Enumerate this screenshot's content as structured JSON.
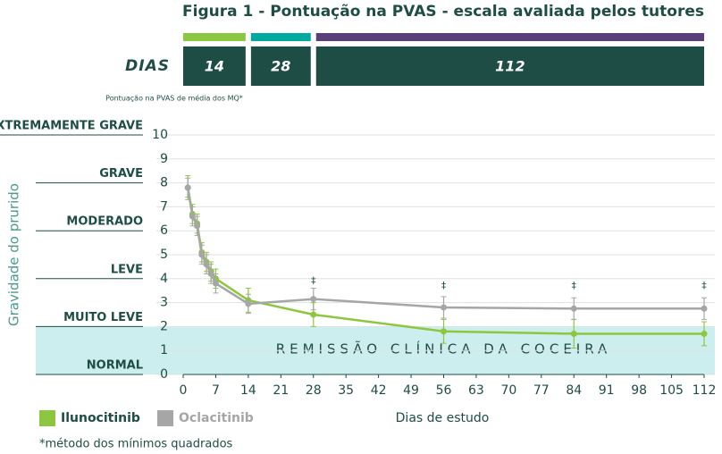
{
  "chart_data": {
    "type": "line",
    "title": "Figura 1 - Pontuação na PVAS - escala avaliada pelos tutores",
    "periods_label": "DIAS",
    "periods": [
      {
        "label": "14",
        "start": 0,
        "end": 14,
        "color": "#8dc63f"
      },
      {
        "label": "28",
        "start": 14,
        "end": 28,
        "color": "#00a99d"
      },
      {
        "label": "112",
        "start": 28,
        "end": 112,
        "color": "#5b3f7a"
      }
    ],
    "y_note": "Pontuação na PVAS de média dos MQ*",
    "ylabel": "Gravidade do prurido",
    "xlabel": "Dias de estudo",
    "severity_levels": [
      {
        "label": "EXTREMAMENTE GRAVE",
        "value": 10
      },
      {
        "label": "GRAVE",
        "value": 8
      },
      {
        "label": "MODERADO",
        "value": 6
      },
      {
        "label": "LEVE",
        "value": 4
      },
      {
        "label": "MUITO LEVE",
        "value": 2
      },
      {
        "label": "NORMAL",
        "value": 0
      }
    ],
    "remission_band": {
      "label": "REMISSÃO CLÍNICA DA COCEIRA",
      "from": 0,
      "to": 2
    },
    "x": [
      1,
      2,
      3,
      4,
      5,
      6,
      7,
      14,
      28,
      56,
      84,
      112
    ],
    "series": [
      {
        "name": "Ilunocitinib",
        "color": "#8dc63f",
        "values": [
          7.8,
          6.7,
          6.3,
          5.1,
          4.7,
          4.3,
          4.0,
          3.1,
          2.5,
          1.8,
          1.7,
          1.7
        ],
        "errors": [
          0.5,
          0.4,
          0.4,
          0.4,
          0.4,
          0.4,
          0.4,
          0.5,
          0.5,
          0.5,
          0.6,
          0.5
        ]
      },
      {
        "name": "Oclacitinib",
        "color": "#a6a6a6",
        "values": [
          7.8,
          6.6,
          6.2,
          5.0,
          4.6,
          4.2,
          3.8,
          2.95,
          3.15,
          2.8,
          2.75,
          2.75
        ],
        "errors": [
          0.4,
          0.4,
          0.4,
          0.4,
          0.4,
          0.4,
          0.4,
          0.4,
          0.45,
          0.45,
          0.45,
          0.45
        ]
      }
    ],
    "annotations": [
      {
        "text": "‡",
        "x": 28,
        "y": 3.9
      },
      {
        "text": "‡",
        "x": 56,
        "y": 3.7
      },
      {
        "text": "‡",
        "x": 84,
        "y": 3.7
      },
      {
        "text": "‡",
        "x": 112,
        "y": 3.7
      }
    ],
    "xlim": [
      0,
      112
    ],
    "xticks": [
      0,
      7,
      14,
      21,
      28,
      35,
      42,
      49,
      56,
      63,
      70,
      77,
      84,
      91,
      98,
      105,
      112
    ],
    "ylim": [
      0,
      10
    ],
    "yticks": [
      0,
      1,
      2,
      3,
      4,
      5,
      6,
      7,
      8,
      9,
      10
    ],
    "grid": true,
    "footnote": "*método dos mínimos quadrados"
  }
}
